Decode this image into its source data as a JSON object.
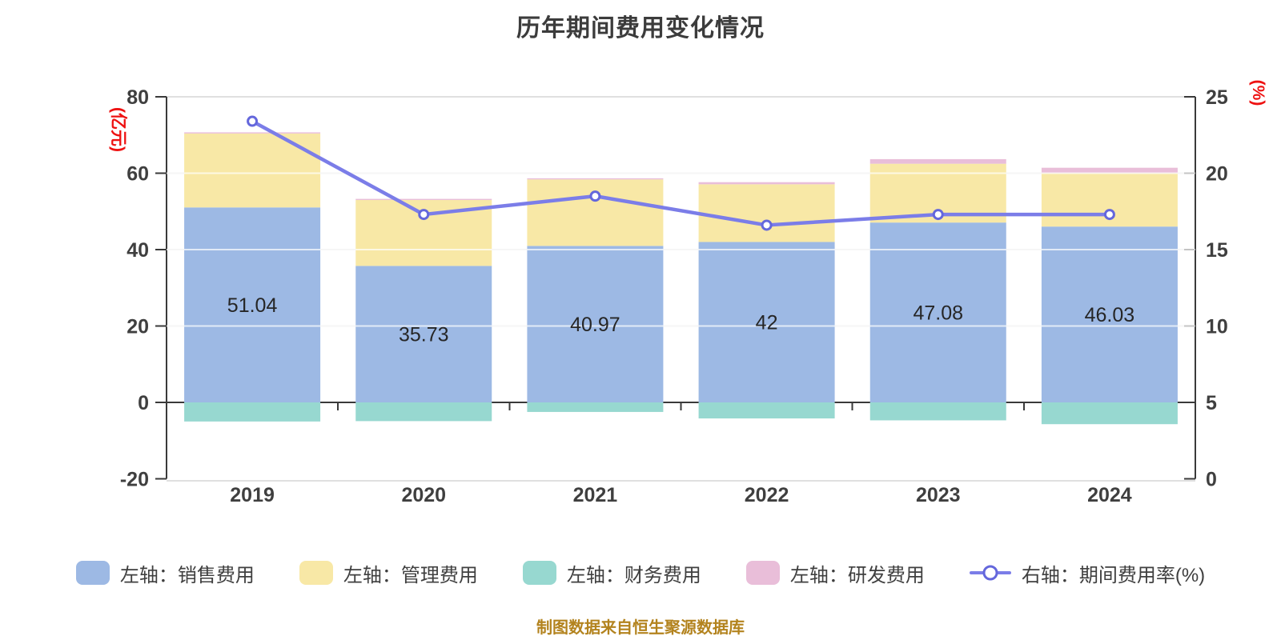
{
  "title": "历年期间费用变化情况",
  "footer": "制图数据来自恒生聚源数据库",
  "left_axis": {
    "unit": "(亿元)",
    "ticks": [
      80,
      60,
      40,
      20,
      0,
      -20
    ]
  },
  "right_axis": {
    "unit": "(%)",
    "ticks": [
      25,
      20,
      15,
      10,
      5,
      0
    ]
  },
  "colors": {
    "sales": "#9db9e4",
    "admin": "#f8e8a6",
    "finance": "#97d8d0",
    "rnd": "#e9bed9",
    "rate_line": "#7b7de8",
    "rate_marker_stroke": "#6467dc",
    "unit_label": "#ee1111",
    "title_text": "#3c3c3c",
    "axis_text": "#3f3f3f",
    "bar_label_text": "#262626",
    "footer_text": "#b3831e",
    "grid": "#e0e0e0",
    "grid_overlay": "rgba(255,255,255,0.7)",
    "axis_line": "#3a3a3a"
  },
  "chart_data": {
    "type": "bar",
    "subtype": "stacked-bar-with-line",
    "categories": [
      "2019",
      "2020",
      "2021",
      "2022",
      "2023",
      "2024"
    ],
    "left_ylim": [
      -20,
      80
    ],
    "right_ylim": [
      0,
      25
    ],
    "grid": true,
    "legend_position": "bottom",
    "bar_series": [
      {
        "name": "左轴：销售费用",
        "color_key": "sales",
        "values": [
          51.04,
          35.73,
          40.97,
          42,
          47.08,
          46.03
        ]
      },
      {
        "name": "左轴：管理费用",
        "color_key": "admin",
        "values": [
          19.36,
          17.25,
          17.4,
          15.1,
          15.4,
          14.0
        ]
      },
      {
        "name": "左轴：研发费用",
        "color_key": "rnd",
        "values": [
          0.3,
          0.3,
          0.3,
          0.55,
          1.2,
          1.4
        ]
      },
      {
        "name": "左轴：财务费用",
        "color_key": "finance",
        "values": [
          -5.0,
          -4.9,
          -2.5,
          -4.2,
          -4.7,
          -5.7
        ]
      }
    ],
    "line_series": {
      "name": "右轴：期间费用率(%)",
      "axis": "right",
      "color_key": "rate_line",
      "values": [
        23.4,
        17.3,
        18.5,
        16.6,
        17.3,
        17.3
      ]
    },
    "bar_labels": [
      "51.04",
      "35.73",
      "40.97",
      "42",
      "47.08",
      "46.03"
    ]
  },
  "legend": [
    {
      "label": "左轴：销售费用",
      "marker": "rect",
      "color_key": "sales"
    },
    {
      "label": "左轴：管理费用",
      "marker": "rect",
      "color_key": "admin"
    },
    {
      "label": "左轴：财务费用",
      "marker": "rect",
      "color_key": "finance"
    },
    {
      "label": "左轴：研发费用",
      "marker": "rect",
      "color_key": "rnd"
    },
    {
      "label": "右轴：期间费用率(%)",
      "marker": "line",
      "color_key": "rate_line"
    }
  ]
}
